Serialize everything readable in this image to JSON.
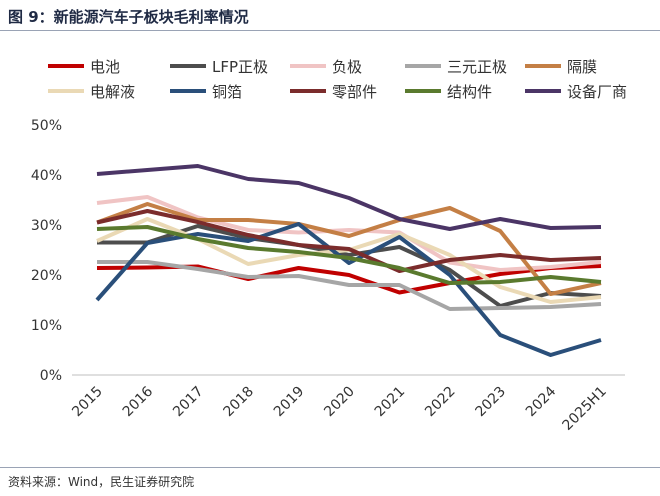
{
  "title": "图 9：新能源汽车子板块毛利率情况",
  "source": "资料来源：Wind，民生证券研究院",
  "chart_data": {
    "type": "line",
    "title": "新能源汽车子板块毛利率情况",
    "xlabel": "",
    "ylabel": "",
    "x": [
      "2015",
      "2016",
      "2017",
      "2018",
      "2019",
      "2020",
      "2021",
      "2022",
      "2023",
      "2024",
      "2025H1"
    ],
    "ylim": [
      0,
      50
    ],
    "yticks": [
      "0%",
      "10%",
      "20%",
      "30%",
      "40%",
      "50%"
    ],
    "grid": false,
    "legend": "top",
    "series": [
      {
        "name": "电池",
        "color": "#c00000",
        "values": [
          21.4,
          21.5,
          21.7,
          19.2,
          21.4,
          20.0,
          16.5,
          18.4,
          20.2,
          21.4,
          21.8
        ]
      },
      {
        "name": "LFP正极",
        "color": "#4d4d4d",
        "values": [
          26.5,
          26.5,
          29.8,
          27.4,
          26.0,
          24.0,
          25.6,
          21.0,
          13.8,
          16.4,
          15.8
        ]
      },
      {
        "name": "负极",
        "color": "#f0c4c4",
        "values": [
          34.4,
          35.6,
          31.5,
          29.0,
          28.5,
          29.0,
          28.5,
          22.5,
          21.0,
          21.6,
          22.6
        ]
      },
      {
        "name": "三元正极",
        "color": "#a6a6a6",
        "values": [
          22.6,
          22.6,
          21.2,
          19.6,
          19.8,
          18.0,
          18.0,
          13.2,
          13.4,
          13.6,
          14.2
        ]
      },
      {
        "name": "隔膜",
        "color": "#c47f45",
        "values": [
          30.5,
          34.2,
          31.0,
          31.0,
          30.2,
          27.8,
          31.0,
          33.4,
          28.8,
          16.2,
          18.4
        ]
      },
      {
        "name": "电解液",
        "color": "#ead9b5",
        "values": [
          26.8,
          31.2,
          27.2,
          22.2,
          24.0,
          25.0,
          28.2,
          24.0,
          17.6,
          14.6,
          15.6
        ]
      },
      {
        "name": "铜箔",
        "color": "#2a4f7a",
        "values": [
          15.0,
          26.4,
          28.2,
          26.8,
          30.2,
          22.4,
          27.6,
          20.0,
          8.0,
          4.0,
          7.0
        ]
      },
      {
        "name": "零部件",
        "color": "#7b2c2c",
        "values": [
          30.5,
          32.8,
          30.6,
          28.0,
          26.0,
          25.2,
          20.8,
          23.0,
          24.0,
          23.0,
          23.4
        ]
      },
      {
        "name": "结构件",
        "color": "#5a7a2e",
        "values": [
          29.2,
          29.6,
          27.2,
          25.4,
          24.6,
          23.4,
          21.4,
          18.4,
          18.6,
          19.6,
          18.6
        ]
      },
      {
        "name": "设备厂商",
        "color": "#4b3566",
        "values": [
          40.2,
          41.0,
          41.8,
          39.2,
          38.4,
          35.4,
          31.2,
          29.2,
          31.2,
          29.4,
          29.6
        ]
      }
    ]
  }
}
